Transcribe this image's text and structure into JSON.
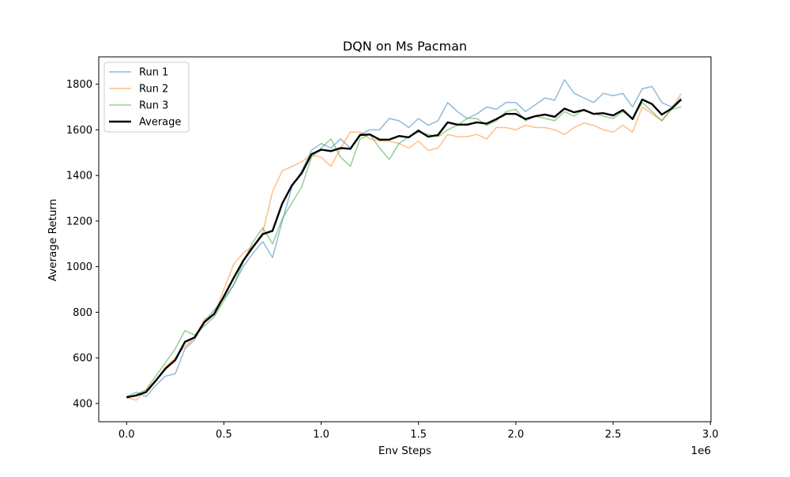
{
  "chart_data": {
    "type": "line",
    "title": "DQN on Ms Pacman",
    "xlabel": "Env Steps",
    "ylabel": "Average Return",
    "x_offset_label": "1e6",
    "xlim": [
      -0.143,
      3.003
    ],
    "ylim": [
      320,
      1920
    ],
    "x_ticks": [
      0.0,
      0.5,
      1.0,
      1.5,
      2.0,
      2.5,
      3.0
    ],
    "x_tick_labels": [
      "0.0",
      "0.5",
      "1.0",
      "1.5",
      "2.0",
      "2.5",
      "3.0"
    ],
    "y_ticks": [
      400,
      600,
      800,
      1000,
      1200,
      1400,
      1600,
      1800
    ],
    "y_tick_labels": [
      "400",
      "600",
      "800",
      "1000",
      "1200",
      "1400",
      "1600",
      "1800"
    ],
    "grid": false,
    "legend_position": "top-left",
    "x": [
      0.0,
      0.05,
      0.1,
      0.15,
      0.2,
      0.25,
      0.3,
      0.35,
      0.4,
      0.45,
      0.5,
      0.55,
      0.6,
      0.65,
      0.7,
      0.75,
      0.8,
      0.85,
      0.9,
      0.95,
      1.0,
      1.05,
      1.1,
      1.15,
      1.2,
      1.25,
      1.3,
      1.35,
      1.4,
      1.45,
      1.5,
      1.55,
      1.6,
      1.65,
      1.7,
      1.75,
      1.8,
      1.85,
      1.9,
      1.95,
      2.0,
      2.05,
      2.1,
      2.15,
      2.2,
      2.25,
      2.3,
      2.35,
      2.4,
      2.45,
      2.5,
      2.55,
      2.6,
      2.65,
      2.7,
      2.75,
      2.8,
      2.85
    ],
    "series": [
      {
        "name": "Run 1",
        "color": "#1f77b4",
        "opacity": 0.5,
        "linewidth": 1.5,
        "values": [
          430,
          450,
          430,
          480,
          520,
          530,
          640,
          680,
          760,
          810,
          860,
          920,
          1000,
          1060,
          1110,
          1040,
          1200,
          1350,
          1420,
          1510,
          1540,
          1520,
          1560,
          1520,
          1580,
          1600,
          1600,
          1650,
          1640,
          1610,
          1650,
          1620,
          1640,
          1720,
          1680,
          1650,
          1670,
          1700,
          1690,
          1720,
          1720,
          1680,
          1710,
          1740,
          1730,
          1820,
          1760,
          1740,
          1720,
          1760,
          1750,
          1760,
          1700,
          1780,
          1790,
          1720,
          1700,
          1740
        ]
      },
      {
        "name": "Run 2",
        "color": "#ff7f0e",
        "opacity": 0.5,
        "linewidth": 1.5,
        "values": [
          425,
          415,
          460,
          500,
          560,
          600,
          650,
          690,
          770,
          790,
          900,
          1010,
          1060,
          1090,
          1150,
          1330,
          1420,
          1440,
          1460,
          1490,
          1480,
          1440,
          1520,
          1590,
          1590,
          1560,
          1550,
          1550,
          1540,
          1520,
          1550,
          1510,
          1520,
          1580,
          1570,
          1570,
          1580,
          1560,
          1610,
          1610,
          1600,
          1620,
          1610,
          1610,
          1600,
          1580,
          1610,
          1630,
          1620,
          1600,
          1590,
          1620,
          1590,
          1700,
          1670,
          1640,
          1690,
          1760
        ]
      },
      {
        "name": "Run 3",
        "color": "#2ca02c",
        "opacity": 0.5,
        "linewidth": 1.5,
        "values": [
          425,
          440,
          460,
          520,
          580,
          640,
          720,
          700,
          740,
          780,
          850,
          920,
          1020,
          1110,
          1170,
          1100,
          1210,
          1280,
          1350,
          1480,
          1520,
          1560,
          1480,
          1440,
          1560,
          1580,
          1520,
          1470,
          1540,
          1570,
          1590,
          1580,
          1570,
          1600,
          1620,
          1650,
          1650,
          1620,
          1640,
          1680,
          1690,
          1640,
          1660,
          1650,
          1640,
          1680,
          1660,
          1690,
          1670,
          1660,
          1650,
          1680,
          1650,
          1720,
          1680,
          1640,
          1690,
          1700
        ]
      },
      {
        "name": "Average",
        "color": "#000000",
        "opacity": 1,
        "linewidth": 2.4,
        "values": [
          427,
          435,
          450,
          500,
          553,
          590,
          670,
          690,
          757,
          793,
          870,
          950,
          1027,
          1087,
          1143,
          1157,
          1277,
          1357,
          1410,
          1493,
          1513,
          1507,
          1520,
          1517,
          1577,
          1580,
          1557,
          1557,
          1573,
          1567,
          1597,
          1570,
          1577,
          1633,
          1623,
          1623,
          1633,
          1627,
          1647,
          1670,
          1670,
          1647,
          1660,
          1667,
          1657,
          1693,
          1677,
          1687,
          1670,
          1673,
          1663,
          1687,
          1647,
          1733,
          1713,
          1667,
          1693,
          1733
        ]
      }
    ]
  }
}
